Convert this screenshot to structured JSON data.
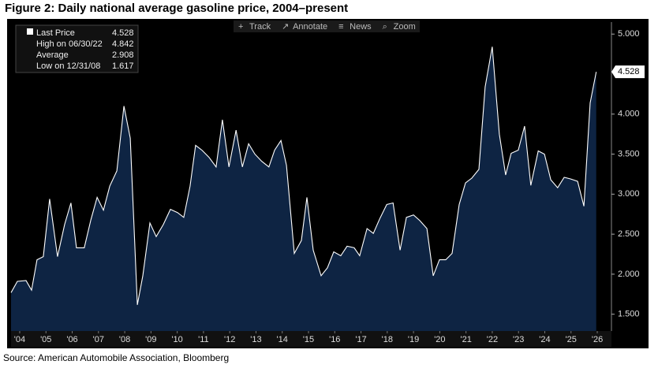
{
  "chart_data": {
    "type": "area",
    "title": "Figure 2: Daily national average gasoline price, 2004–present",
    "source": "Source: American Automobile Association, Bloomberg",
    "toolbar": [
      "Track",
      "Annotate",
      "News",
      "Zoom"
    ],
    "stats": [
      {
        "label": "Last Price",
        "value": 4.528
      },
      {
        "label": "High on 06/30/22",
        "value": 4.842
      },
      {
        "label": "Average",
        "value": 2.908
      },
      {
        "label": "Low on 12/31/08",
        "value": 1.617
      }
    ],
    "series": [
      {
        "color": "#ffffff",
        "fill": "#0e2443",
        "x": [
          2004.17,
          2004.41,
          2004.74,
          2004.95,
          2005.16,
          2005.4,
          2005.64,
          2005.94,
          2006.21,
          2006.45,
          2006.66,
          2006.96,
          2007.21,
          2007.45,
          2007.69,
          2007.93,
          2008.2,
          2008.47,
          2008.71,
          2008.98,
          2009.19,
          2009.46,
          2009.7,
          2009.97,
          2010.24,
          2010.51,
          2010.75,
          2010.99,
          2011.2,
          2011.44,
          2011.71,
          2011.98,
          2012.22,
          2012.47,
          2012.74,
          2012.98,
          2013.22,
          2013.46,
          2013.72,
          2013.99,
          2014.21,
          2014.45,
          2014.66,
          2014.96,
          2015.23,
          2015.44,
          2015.68,
          2015.98,
          2016.22,
          2016.46,
          2016.73,
          2016.97,
          2017.24,
          2017.45,
          2017.73,
          2017.97,
          2018.21,
          2018.48,
          2018.72,
          2018.99,
          2019.23,
          2019.5,
          2019.74,
          2020.01,
          2020.25,
          2020.49,
          2020.73,
          2020.97,
          2021.24,
          2021.48,
          2021.72,
          2021.99,
          2022.23,
          2022.5,
          2022.77,
          2023.01,
          2023.22,
          2023.49,
          2023.73,
          2023.97,
          2024.25,
          2024.49,
          2024.73,
          2024.99,
          2025.24,
          2025.48,
          2025.75,
          2025.99,
          2026.23,
          2026.46
        ],
        "values": [
          1.77,
          1.91,
          1.92,
          1.8,
          2.18,
          2.22,
          2.94,
          2.22,
          2.62,
          2.89,
          2.33,
          2.33,
          2.68,
          2.96,
          2.8,
          3.1,
          3.29,
          4.1,
          3.7,
          1.617,
          1.98,
          2.64,
          2.47,
          2.62,
          2.81,
          2.77,
          2.71,
          3.1,
          3.61,
          3.55,
          3.46,
          3.34,
          3.93,
          3.34,
          3.8,
          3.34,
          3.63,
          3.5,
          3.41,
          3.34,
          3.55,
          3.67,
          3.36,
          2.26,
          2.42,
          2.96,
          2.3,
          1.98,
          2.08,
          2.28,
          2.23,
          2.35,
          2.33,
          2.23,
          2.57,
          2.51,
          2.69,
          2.87,
          2.89,
          2.3,
          2.71,
          2.74,
          2.67,
          2.57,
          1.98,
          2.18,
          2.18,
          2.26,
          2.87,
          3.14,
          3.2,
          3.31,
          4.34,
          4.842,
          3.75,
          3.24,
          3.51,
          3.55,
          3.85,
          3.11,
          3.54,
          3.5,
          3.18,
          3.08,
          3.21,
          3.19,
          3.16,
          2.85,
          4.14,
          4.528
        ]
      }
    ],
    "xlim": [
      2004.17,
      2027.04
    ],
    "ylim": [
      1.29,
      5.15
    ],
    "xticks": [
      {
        "value": 2004.5,
        "label": "'04"
      },
      {
        "value": 2005.5,
        "label": "'05"
      },
      {
        "value": 2006.5,
        "label": "'06"
      },
      {
        "value": 2007.5,
        "label": "'07"
      },
      {
        "value": 2008.5,
        "label": "'08"
      },
      {
        "value": 2009.5,
        "label": "'09"
      },
      {
        "value": 2010.5,
        "label": "'10"
      },
      {
        "value": 2011.5,
        "label": "'11"
      },
      {
        "value": 2012.5,
        "label": "'12"
      },
      {
        "value": 2013.5,
        "label": "'13"
      },
      {
        "value": 2014.5,
        "label": "'14"
      },
      {
        "value": 2015.5,
        "label": "'15"
      },
      {
        "value": 2016.5,
        "label": "'16"
      },
      {
        "value": 2017.5,
        "label": "'17"
      },
      {
        "value": 2018.5,
        "label": "'18"
      },
      {
        "value": 2019.5,
        "label": "'19"
      },
      {
        "value": 2020.5,
        "label": "'20"
      },
      {
        "value": 2021.5,
        "label": "'21"
      },
      {
        "value": 2022.5,
        "label": "'22"
      },
      {
        "value": 2023.5,
        "label": "'23"
      },
      {
        "value": 2024.5,
        "label": "'24"
      },
      {
        "value": 2025.5,
        "label": "'25"
      },
      {
        "value": 2026.5,
        "label": "'26"
      }
    ],
    "yticks": [
      {
        "value": 1.5,
        "label": "1.500"
      },
      {
        "value": 2,
        "label": "2.000"
      },
      {
        "value": 2.5,
        "label": "2.500"
      },
      {
        "value": 3,
        "label": "3.000"
      },
      {
        "value": 3.5,
        "label": "3.500"
      },
      {
        "value": 4,
        "label": "4.000"
      },
      {
        "value": 5,
        "label": "5.000"
      }
    ]
  }
}
